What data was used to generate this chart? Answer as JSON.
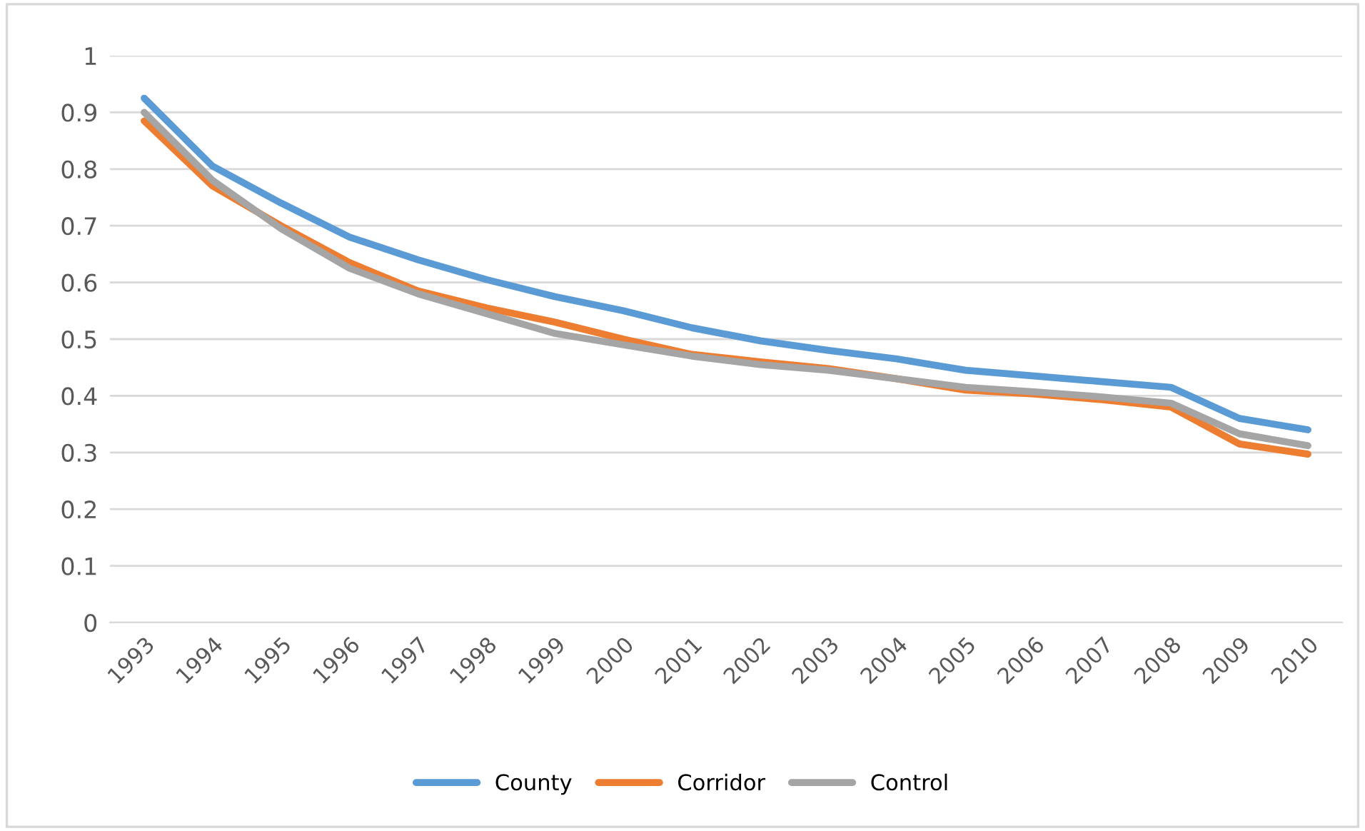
{
  "chart_data": {
    "type": "line",
    "categories": [
      "1993",
      "1994",
      "1995",
      "1996",
      "1997",
      "1998",
      "1999",
      "2000",
      "2001",
      "2002",
      "2003",
      "2004",
      "2005",
      "2006",
      "2007",
      "2008",
      "2009",
      "2010"
    ],
    "series": [
      {
        "name": "County",
        "color": "#5b9bd5",
        "values": [
          0.925,
          0.805,
          0.74,
          0.68,
          0.64,
          0.605,
          0.575,
          0.55,
          0.52,
          0.497,
          0.48,
          0.465,
          0.445,
          0.435,
          0.425,
          0.415,
          0.36,
          0.34
        ]
      },
      {
        "name": "Corridor",
        "color": "#ed7d31",
        "values": [
          0.885,
          0.77,
          0.7,
          0.635,
          0.585,
          0.555,
          0.53,
          0.5,
          0.473,
          0.46,
          0.448,
          0.43,
          0.41,
          0.403,
          0.393,
          0.38,
          0.315,
          0.297
        ]
      },
      {
        "name": "Control",
        "color": "#a5a5a5",
        "values": [
          0.9,
          0.78,
          0.695,
          0.625,
          0.58,
          0.545,
          0.51,
          0.49,
          0.47,
          0.455,
          0.445,
          0.43,
          0.415,
          0.407,
          0.398,
          0.387,
          0.333,
          0.312
        ]
      }
    ],
    "ylim": [
      0,
      1
    ],
    "yticks": [
      0,
      0.1,
      0.2,
      0.3,
      0.4,
      0.5,
      0.6,
      0.7,
      0.8,
      0.9,
      1
    ],
    "grid": "y",
    "legend": "bottom",
    "marker": "none",
    "line_style": "solid"
  }
}
